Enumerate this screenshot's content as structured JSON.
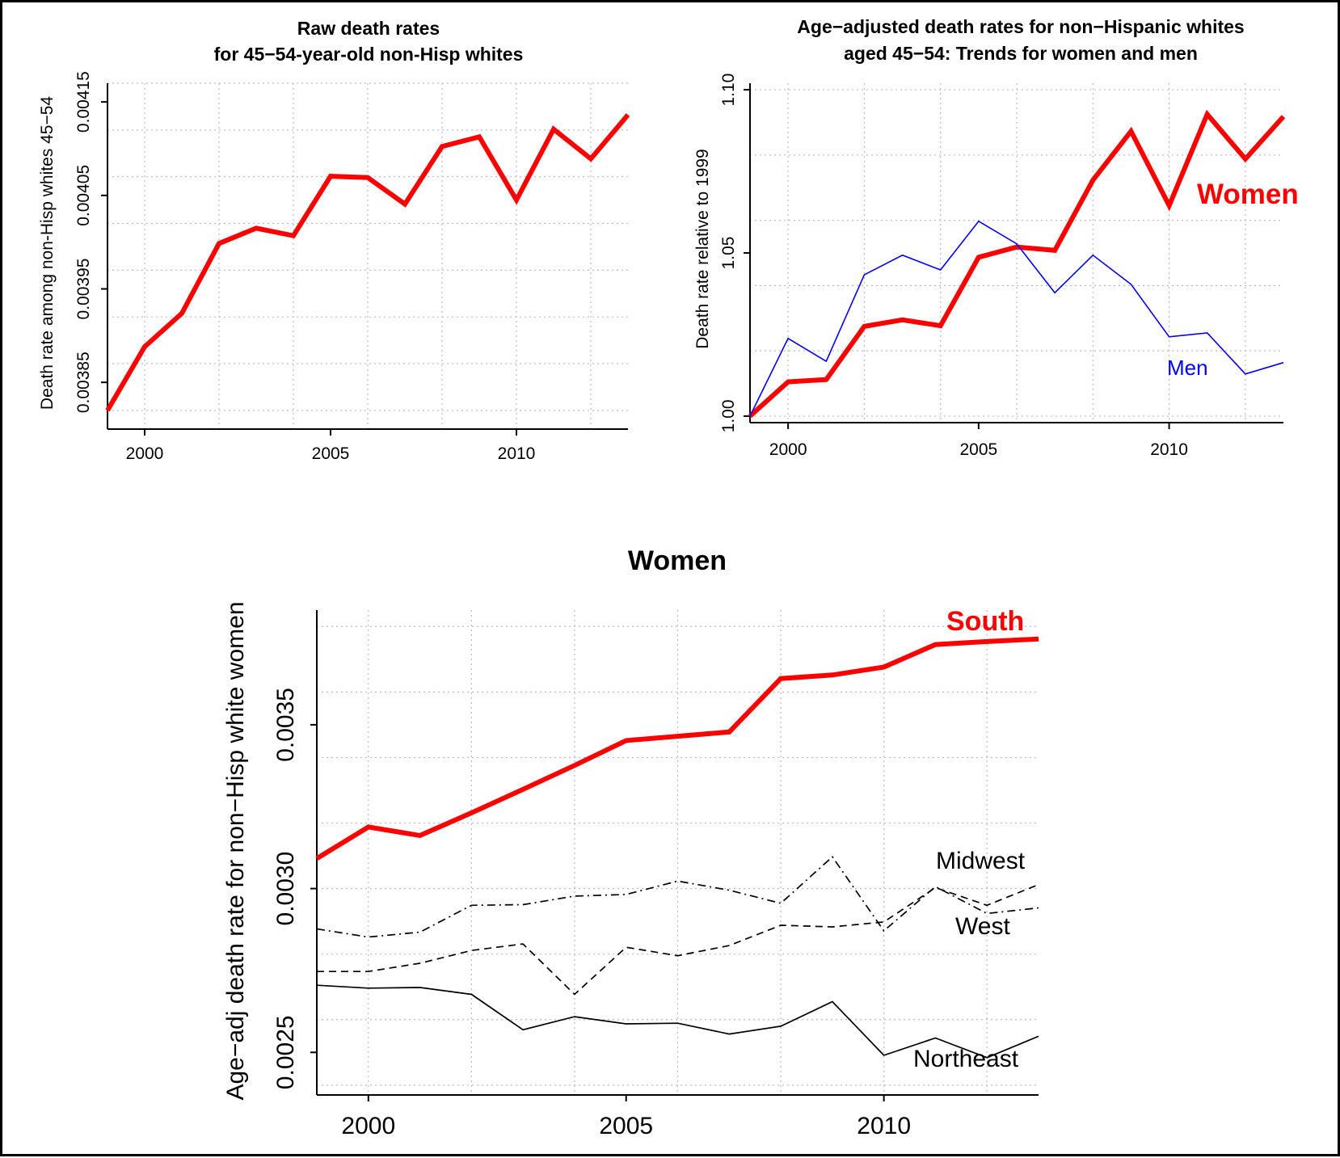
{
  "chart_data": [
    {
      "type": "line",
      "title": [
        "Raw death rates",
        "for 45−54-year-old non-Hisp whites"
      ],
      "xlabel": "",
      "ylabel": "Death rate among non-Hisp whites 45−54",
      "xlim": [
        1999,
        2013
      ],
      "ylim": [
        0.0038,
        0.00417
      ],
      "x_ticks": [
        2000,
        2005,
        2010
      ],
      "y_ticks": [
        "0.00385",
        "0.00395",
        "0.00405",
        "0.00415"
      ],
      "y_tick_values": [
        0.00385,
        0.00395,
        0.00405,
        0.00415
      ],
      "grid": true,
      "x": [
        1999,
        2000,
        2001,
        2002,
        2003,
        2004,
        2005,
        2006,
        2007,
        2008,
        2009,
        2010,
        2011,
        2012,
        2013
      ],
      "series": [
        {
          "name": "",
          "color": "#ff0000",
          "values": [
            0.00382,
            0.0038882,
            0.0039239,
            0.0039986,
            0.0040149,
            0.0040069,
            0.0040705,
            0.0040691,
            0.0040407,
            0.0041024,
            0.0041127,
            0.0040451,
            0.0041208,
            0.0040892,
            0.0041362
          ]
        }
      ]
    },
    {
      "type": "line",
      "title": [
        "Age−adjusted death rates for non−Hispanic whites",
        "aged 45−54: Trends for women and men"
      ],
      "xlabel": "",
      "ylabel": "Death rate relative to 1999",
      "xlim": [
        1999,
        2013
      ],
      "ylim": [
        0.998,
        1.102
      ],
      "x_ticks": [
        2000,
        2005,
        2010
      ],
      "y_ticks": [
        "1.00",
        "1.05",
        "1.10"
      ],
      "y_tick_values": [
        1.0,
        1.05,
        1.1
      ],
      "grid": true,
      "x": [
        1999,
        2000,
        2001,
        2002,
        2003,
        2004,
        2005,
        2006,
        2007,
        2008,
        2009,
        2010,
        2011,
        2012,
        2013
      ],
      "series": [
        {
          "name": "Women",
          "color": "#ff0000",
          "values": [
            1.0,
            1.0105,
            1.0112,
            1.0275,
            1.0295,
            1.0277,
            1.0487,
            1.0518,
            1.0508,
            1.0723,
            1.0873,
            1.0645,
            1.0925,
            1.0788,
            1.0918
          ]
        },
        {
          "name": "Men",
          "color": "#0000ff",
          "values": [
            1.0,
            1.0238,
            1.0168,
            1.0433,
            1.0493,
            1.0448,
            1.0597,
            1.0528,
            1.0378,
            1.0493,
            1.0404,
            1.0243,
            1.0255,
            1.0129,
            1.0164
          ]
        }
      ]
    },
    {
      "type": "line",
      "title": "Women",
      "xlabel": "",
      "ylabel": "Age−adj death rate for non−Hisp white women",
      "xlim": [
        1999,
        2013
      ],
      "ylim": [
        0.00237,
        0.00385
      ],
      "x_ticks": [
        2000,
        2005,
        2010
      ],
      "y_ticks": [
        "0.0025",
        "0.0030",
        "0.0035"
      ],
      "y_tick_values": [
        0.0025,
        0.003,
        0.0035
      ],
      "grid": true,
      "x": [
        1999,
        2000,
        2001,
        2002,
        2003,
        2004,
        2005,
        2006,
        2007,
        2008,
        2009,
        2010,
        2011,
        2012,
        2013
      ],
      "series": [
        {
          "name": "South",
          "color": "#ff0000",
          "values": [
            0.003092,
            0.003188,
            0.003162,
            0.003231,
            0.003303,
            0.003376,
            0.003452,
            0.003465,
            0.003478,
            0.003641,
            0.003652,
            0.003676,
            0.003745,
            0.003754,
            0.003762
          ]
        },
        {
          "name": "Midwest",
          "color": "#000000",
          "values": [
            0.002877,
            0.002852,
            0.002867,
            0.002949,
            0.002951,
            0.002977,
            0.002982,
            0.003023,
            0.002995,
            0.002955,
            0.003097,
            0.002871,
            0.003006,
            0.002924,
            0.002941
          ]
        },
        {
          "name": "West",
          "color": "#000000",
          "values": [
            0.002747,
            0.002747,
            0.002772,
            0.002811,
            0.002831,
            0.002677,
            0.002821,
            0.002795,
            0.002826,
            0.002888,
            0.002883,
            0.002898,
            0.003003,
            0.002949,
            0.003012
          ]
        },
        {
          "name": "Northeast",
          "color": "#000000",
          "values": [
            0.002705,
            0.002696,
            0.002698,
            0.002677,
            0.002569,
            0.002609,
            0.002587,
            0.002589,
            0.002556,
            0.00258,
            0.002655,
            0.002491,
            0.002544,
            0.002484,
            0.002549
          ]
        }
      ]
    }
  ]
}
